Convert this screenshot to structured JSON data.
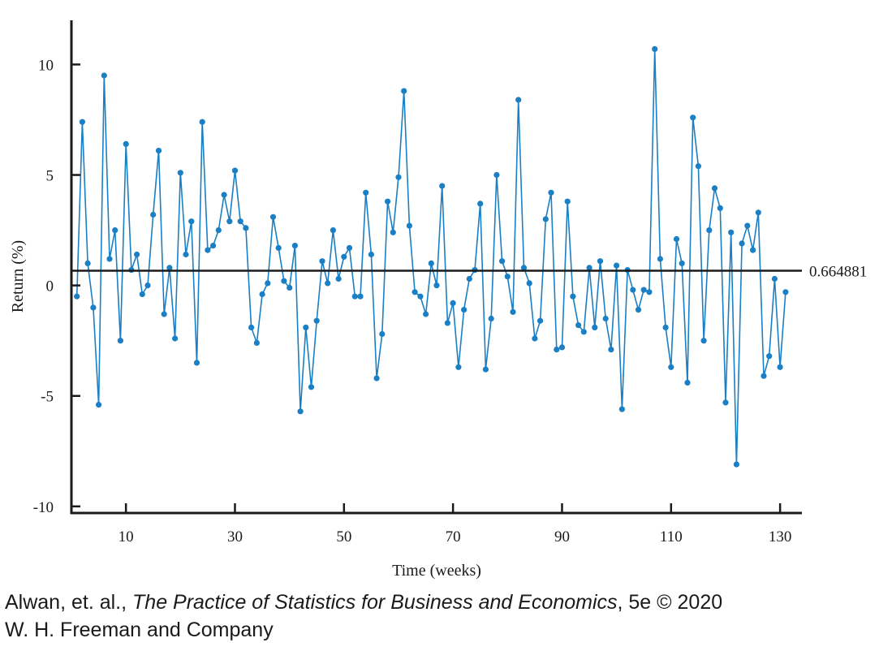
{
  "chart_data": {
    "type": "line",
    "title": "",
    "xlabel": "Time (weeks)",
    "ylabel": "Return (%)",
    "xlim": [
      0,
      134
    ],
    "ylim": [
      -10.3,
      12
    ],
    "xticks": [
      10,
      30,
      50,
      70,
      90,
      110,
      130
    ],
    "yticks": [
      10,
      5,
      0,
      -5,
      -10
    ],
    "reference_line": {
      "y": 0.664881,
      "label": "0.664881"
    },
    "grid": false,
    "series": [
      {
        "color": "#1a7fc4",
        "x": [
          1,
          2,
          3,
          4,
          5,
          6,
          7,
          8,
          9,
          10,
          11,
          12,
          13,
          14,
          15,
          16,
          17,
          18,
          19,
          20,
          21,
          22,
          23,
          24,
          25,
          26,
          27,
          28,
          29,
          30,
          31,
          32,
          33,
          34,
          35,
          36,
          37,
          38,
          39,
          40,
          41,
          42,
          43,
          44,
          45,
          46,
          47,
          48,
          49,
          50,
          51,
          52,
          53,
          54,
          55,
          56,
          57,
          58,
          59,
          60,
          61,
          62,
          63,
          64,
          65,
          66,
          67,
          68,
          69,
          70,
          71,
          72,
          73,
          74,
          75,
          76,
          77,
          78,
          79,
          80,
          81,
          82,
          83,
          84,
          85,
          86,
          87,
          88,
          89,
          90,
          91,
          92,
          93,
          94,
          95,
          96,
          97,
          98,
          99,
          100,
          101,
          102,
          103,
          104,
          105,
          106,
          107,
          108,
          109,
          110,
          111,
          112,
          113,
          114,
          115,
          116,
          117,
          118,
          119,
          120,
          121,
          122,
          123,
          124,
          125,
          126,
          127,
          128,
          129,
          130,
          131
        ],
        "y": [
          -0.5,
          7.4,
          1.0,
          -1.0,
          -5.4,
          9.5,
          1.2,
          2.5,
          -2.5,
          6.4,
          0.7,
          1.4,
          -0.4,
          0.0,
          3.2,
          6.1,
          -1.3,
          0.8,
          -2.4,
          5.1,
          1.4,
          2.9,
          -3.5,
          7.4,
          1.6,
          1.8,
          2.5,
          4.1,
          2.9,
          5.2,
          2.9,
          2.6,
          -1.9,
          -2.6,
          -0.4,
          0.1,
          3.1,
          1.7,
          0.2,
          -0.1,
          1.8,
          -5.7,
          -1.9,
          -4.6,
          -1.6,
          1.1,
          0.1,
          2.5,
          0.3,
          1.3,
          1.7,
          -0.5,
          -0.5,
          4.2,
          1.4,
          -4.2,
          -2.2,
          3.8,
          2.4,
          4.9,
          8.8,
          2.7,
          -0.3,
          -0.5,
          -1.3,
          1.0,
          0.0,
          4.5,
          -1.7,
          -0.8,
          -3.7,
          -1.1,
          0.3,
          0.7,
          3.7,
          -3.8,
          -1.5,
          5.0,
          1.1,
          0.4,
          -1.2,
          8.4,
          0.8,
          0.1,
          -2.4,
          -1.6,
          3.0,
          4.2,
          -2.9,
          -2.8,
          3.8,
          -0.5,
          -1.8,
          -2.1,
          0.8,
          -1.9,
          1.1,
          -1.5,
          -2.9,
          0.9,
          -5.6,
          0.7,
          -0.2,
          -1.1,
          -0.2,
          -0.3,
          10.7,
          1.2,
          -1.9,
          -3.7,
          2.1,
          1.0,
          -4.4,
          7.6,
          5.4,
          -2.5,
          2.5,
          4.4,
          3.5,
          -5.3,
          2.4,
          -8.1,
          1.9,
          2.7,
          1.6,
          3.3,
          -4.1,
          -3.2,
          0.3,
          -3.7,
          -0.3
        ]
      }
    ]
  },
  "caption": {
    "line1_author": "Alwan, et. al., ",
    "line1_title": "The Practice of Statistics for Business and Economics",
    "line1_rest": ", 5e © 2020",
    "line2": "W. H. Freeman and Company"
  }
}
